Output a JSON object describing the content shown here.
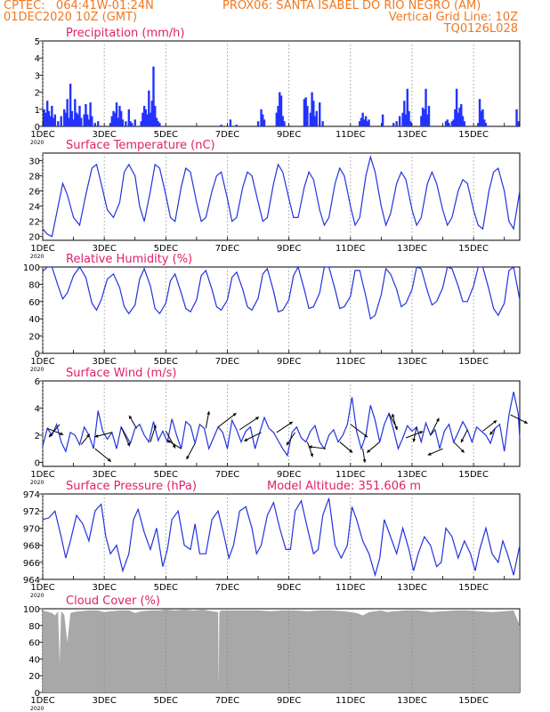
{
  "header": {
    "line1_left": "CPTEC:   064:41W-01:24N",
    "line1_right": "PROX06: SANTA ISABEL DO RIO NEGRO (AM)",
    "line2_left": "01DEC2020 10Z (GMT)",
    "line2_right": "Vertical Grid Line: 10Z",
    "line3_right": "TQ0126L028"
  },
  "colors": {
    "header": "#f07820",
    "title": "#e0206a",
    "series": "#2233dd",
    "bars": "#2233ff",
    "cloud": "#a8a8a8",
    "grid": "#888888"
  },
  "x_axis": {
    "range_days": [
      1.0,
      16.5
    ],
    "ticks": [
      {
        "day": 1,
        "label": "1DEC"
      },
      {
        "day": 3,
        "label": "3DEC"
      },
      {
        "day": 5,
        "label": "5DEC"
      },
      {
        "day": 7,
        "label": "7DEC"
      },
      {
        "day": 9,
        "label": "9DEC"
      },
      {
        "day": 11,
        "label": "11DEC"
      },
      {
        "day": 13,
        "label": "13DEC"
      },
      {
        "day": 15,
        "label": "15DEC"
      }
    ],
    "year_label": "2020"
  },
  "chart_data": [
    {
      "id": "precip",
      "type": "bar",
      "title": "Precipitation (mm/h)",
      "ylim": [
        0,
        5
      ],
      "yticks": [
        0,
        1,
        2,
        3,
        4,
        5
      ],
      "x_days": [
        1.05,
        1.1,
        1.15,
        1.2,
        1.25,
        1.3,
        1.35,
        1.4,
        1.5,
        1.6,
        1.7,
        1.75,
        1.8,
        1.85,
        1.9,
        1.95,
        2.0,
        2.05,
        2.1,
        2.15,
        2.2,
        2.25,
        2.35,
        2.4,
        2.45,
        2.5,
        2.55,
        2.6,
        2.7,
        2.8,
        3.2,
        3.25,
        3.3,
        3.35,
        3.4,
        3.45,
        3.5,
        3.55,
        3.6,
        3.7,
        3.8,
        3.85,
        3.9,
        4.0,
        4.2,
        4.25,
        4.3,
        4.35,
        4.4,
        4.45,
        4.5,
        4.55,
        4.6,
        4.65,
        4.7,
        4.75,
        4.8,
        6.8,
        7.1,
        7.3,
        8.0,
        8.1,
        8.15,
        8.2,
        8.6,
        8.65,
        8.7,
        8.75,
        8.8,
        8.85,
        9.5,
        9.55,
        9.6,
        9.7,
        9.75,
        9.8,
        9.85,
        9.9,
        10.0,
        10.1,
        11.3,
        11.35,
        11.4,
        11.45,
        11.5,
        11.55,
        11.6,
        12.05,
        12.4,
        12.5,
        12.6,
        12.7,
        12.75,
        12.8,
        12.85,
        12.9,
        12.95,
        13.3,
        13.35,
        13.4,
        13.45,
        13.5,
        13.55,
        14.1,
        14.15,
        14.2,
        14.3,
        14.35,
        14.4,
        14.45,
        14.5,
        14.55,
        14.6,
        14.65,
        14.7,
        15.15,
        15.2,
        15.25,
        15.3,
        15.35,
        15.4,
        16.4,
        16.45
      ],
      "values": [
        1.0,
        0.8,
        1.5,
        0.9,
        0.6,
        1.2,
        0.5,
        0.7,
        0.3,
        0.6,
        1.0,
        0.8,
        1.6,
        0.5,
        2.5,
        0.9,
        0.4,
        1.6,
        0.8,
        0.7,
        1.2,
        0.5,
        0.7,
        1.3,
        0.7,
        0.4,
        1.4,
        0.6,
        0.2,
        0.3,
        0.2,
        0.6,
        0.9,
        0.8,
        1.4,
        0.5,
        1.2,
        0.9,
        0.4,
        0.3,
        1.0,
        0.3,
        0.2,
        0.4,
        0.3,
        0.8,
        1.2,
        1.0,
        0.7,
        2.1,
        0.8,
        1.5,
        3.5,
        1.2,
        0.5,
        0.3,
        0.2,
        0.1,
        0.4,
        0.1,
        0.3,
        1.0,
        0.7,
        0.4,
        0.8,
        1.2,
        2.0,
        1.8,
        0.6,
        0.3,
        1.6,
        1.7,
        1.2,
        0.8,
        2.0,
        1.5,
        0.6,
        0.9,
        1.4,
        0.3,
        0.3,
        0.5,
        0.8,
        0.4,
        0.6,
        0.3,
        0.4,
        0.7,
        0.2,
        0.3,
        0.6,
        0.8,
        1.5,
        0.7,
        2.2,
        0.9,
        0.3,
        0.6,
        1.1,
        1.0,
        2.2,
        0.7,
        1.2,
        0.3,
        0.4,
        0.2,
        0.3,
        0.4,
        1.0,
        2.2,
        0.8,
        1.1,
        1.3,
        0.6,
        0.3,
        0.2,
        1.6,
        0.9,
        1.0,
        0.4,
        0.2,
        1.0,
        0.3
      ]
    },
    {
      "id": "temp",
      "type": "line",
      "title": "Surface Temperature (nC)",
      "ylim": [
        19.5,
        31
      ],
      "yticks": [
        20,
        22,
        24,
        26,
        28,
        30
      ],
      "x_days": [
        1.0,
        1.15,
        1.3,
        1.5,
        1.65,
        1.8,
        2.0,
        2.2,
        2.4,
        2.6,
        2.75,
        2.9,
        3.1,
        3.3,
        3.5,
        3.65,
        3.8,
        4.0,
        4.15,
        4.3,
        4.5,
        4.65,
        4.8,
        5.0,
        5.15,
        5.3,
        5.5,
        5.65,
        5.8,
        6.0,
        6.15,
        6.3,
        6.5,
        6.65,
        6.8,
        7.0,
        7.15,
        7.3,
        7.5,
        7.65,
        7.8,
        8.0,
        8.15,
        8.3,
        8.5,
        8.65,
        8.8,
        9.0,
        9.15,
        9.3,
        9.5,
        9.65,
        9.8,
        10.0,
        10.15,
        10.3,
        10.5,
        10.65,
        10.8,
        11.0,
        11.15,
        11.3,
        11.5,
        11.65,
        11.8,
        12.0,
        12.15,
        12.3,
        12.5,
        12.65,
        12.8,
        13.0,
        13.15,
        13.3,
        13.5,
        13.65,
        13.8,
        14.0,
        14.15,
        14.3,
        14.5,
        14.65,
        14.8,
        15.0,
        15.15,
        15.3,
        15.5,
        15.65,
        15.8,
        16.0,
        16.15,
        16.3,
        16.5
      ],
      "values": [
        21.0,
        20.3,
        20.0,
        24.0,
        27.0,
        25.5,
        22.5,
        21.5,
        25.5,
        29.0,
        29.5,
        27.0,
        23.5,
        22.5,
        24.5,
        28.5,
        29.5,
        28.0,
        24.0,
        22.0,
        26.0,
        29.5,
        29.0,
        25.5,
        22.5,
        22.0,
        26.5,
        29.0,
        28.5,
        24.5,
        22.0,
        22.5,
        26.0,
        28.0,
        28.5,
        25.0,
        22.0,
        22.5,
        26.5,
        28.5,
        28.0,
        24.5,
        22.0,
        22.5,
        27.0,
        29.5,
        28.5,
        25.0,
        22.5,
        22.5,
        26.5,
        28.5,
        27.5,
        23.5,
        21.5,
        22.5,
        27.0,
        29.0,
        28.0,
        24.0,
        21.5,
        22.5,
        28.0,
        30.5,
        28.5,
        24.0,
        21.5,
        23.0,
        27.0,
        28.5,
        27.5,
        23.5,
        21.5,
        22.5,
        27.0,
        28.5,
        27.0,
        23.5,
        21.5,
        22.5,
        26.0,
        27.5,
        27.0,
        23.5,
        21.5,
        21.0,
        26.0,
        28.5,
        29.0,
        26.0,
        22.0,
        21.0,
        26.0
      ]
    },
    {
      "id": "rh",
      "type": "line",
      "title": "Relative Humidity (%)",
      "ylim": [
        0,
        100
      ],
      "yticks": [
        0,
        20,
        40,
        60,
        80,
        100
      ],
      "x_days": [
        1.0,
        1.15,
        1.3,
        1.5,
        1.65,
        1.8,
        2.0,
        2.2,
        2.4,
        2.6,
        2.75,
        2.9,
        3.1,
        3.3,
        3.5,
        3.65,
        3.8,
        4.0,
        4.15,
        4.3,
        4.5,
        4.65,
        4.8,
        5.0,
        5.15,
        5.3,
        5.5,
        5.65,
        5.8,
        6.0,
        6.15,
        6.3,
        6.5,
        6.65,
        6.8,
        7.0,
        7.15,
        7.3,
        7.5,
        7.65,
        7.8,
        8.0,
        8.15,
        8.3,
        8.5,
        8.65,
        8.8,
        9.0,
        9.15,
        9.3,
        9.5,
        9.65,
        9.8,
        10.0,
        10.15,
        10.3,
        10.5,
        10.65,
        10.8,
        11.0,
        11.15,
        11.3,
        11.5,
        11.65,
        11.8,
        12.0,
        12.15,
        12.3,
        12.5,
        12.65,
        12.8,
        13.0,
        13.15,
        13.3,
        13.5,
        13.65,
        13.8,
        14.0,
        14.15,
        14.3,
        14.5,
        14.65,
        14.8,
        15.0,
        15.15,
        15.3,
        15.5,
        15.65,
        15.8,
        16.0,
        16.15,
        16.3,
        16.5
      ],
      "values": [
        95,
        100,
        100,
        78,
        63,
        70,
        90,
        100,
        88,
        58,
        50,
        62,
        86,
        92,
        76,
        54,
        46,
        56,
        86,
        98,
        78,
        52,
        46,
        58,
        84,
        92,
        70,
        52,
        48,
        62,
        90,
        96,
        74,
        54,
        50,
        62,
        88,
        94,
        74,
        54,
        50,
        64,
        92,
        98,
        72,
        48,
        50,
        62,
        90,
        100,
        74,
        52,
        54,
        70,
        100,
        100,
        74,
        52,
        54,
        66,
        96,
        96,
        66,
        40,
        44,
        68,
        98,
        92,
        74,
        54,
        58,
        74,
        100,
        98,
        72,
        56,
        60,
        76,
        100,
        98,
        78,
        60,
        60,
        78,
        100,
        100,
        74,
        52,
        44,
        58,
        96,
        100,
        62
      ]
    },
    {
      "id": "wind",
      "type": "line",
      "title": "Surface Wind (m/s)",
      "ylim": [
        -0.3,
        6
      ],
      "yticks": [
        0,
        2,
        4,
        6
      ],
      "x_days": [
        1.0,
        1.15,
        1.3,
        1.45,
        1.6,
        1.75,
        1.9,
        2.05,
        2.2,
        2.35,
        2.5,
        2.65,
        2.8,
        2.95,
        3.1,
        3.25,
        3.4,
        3.55,
        3.7,
        3.85,
        4.0,
        4.15,
        4.3,
        4.45,
        4.6,
        4.75,
        4.9,
        5.05,
        5.2,
        5.35,
        5.5,
        5.65,
        5.8,
        5.95,
        6.1,
        6.25,
        6.4,
        6.55,
        6.7,
        6.85,
        7.0,
        7.15,
        7.3,
        7.45,
        7.6,
        7.75,
        7.9,
        8.05,
        8.2,
        8.35,
        8.5,
        8.65,
        8.8,
        8.95,
        9.1,
        9.25,
        9.4,
        9.55,
        9.7,
        9.85,
        10.0,
        10.15,
        10.3,
        10.45,
        10.6,
        10.75,
        10.9,
        11.05,
        11.2,
        11.35,
        11.5,
        11.65,
        11.8,
        11.95,
        12.1,
        12.25,
        12.4,
        12.55,
        12.7,
        12.85,
        13.0,
        13.15,
        13.3,
        13.45,
        13.6,
        13.75,
        13.9,
        14.05,
        14.2,
        14.35,
        14.5,
        14.65,
        14.8,
        14.95,
        15.1,
        15.25,
        15.4,
        15.55,
        15.7,
        15.85,
        16.0,
        16.15,
        16.3,
        16.45,
        16.5
      ],
      "values": [
        1.2,
        2.5,
        2.0,
        2.8,
        1.5,
        0.8,
        2.2,
        2.0,
        1.3,
        2.6,
        2.0,
        1.0,
        3.8,
        2.3,
        1.7,
        2.2,
        1.0,
        2.6,
        2.0,
        1.4,
        2.5,
        2.8,
        2.0,
        1.5,
        3.0,
        1.6,
        2.3,
        1.5,
        3.2,
        2.0,
        1.0,
        3.0,
        2.7,
        1.4,
        2.8,
        2.5,
        1.0,
        1.8,
        2.6,
        2.2,
        1.0,
        3.1,
        2.4,
        1.5,
        2.3,
        2.6,
        1.0,
        2.2,
        3.3,
        2.5,
        2.2,
        1.6,
        1.0,
        0.5,
        2.2,
        2.6,
        1.8,
        1.5,
        2.3,
        2.7,
        1.5,
        1.0,
        2.0,
        2.4,
        1.5,
        2.0,
        2.8,
        4.8,
        2.3,
        1.0,
        2.0,
        4.2,
        3.1,
        1.5,
        2.8,
        3.6,
        2.4,
        1.0,
        1.8,
        2.7,
        2.3,
        2.6,
        1.5,
        2.9,
        2.0,
        2.4,
        1.0,
        2.3,
        2.8,
        1.5,
        2.2,
        3.0,
        2.4,
        1.5,
        2.6,
        2.3,
        2.0,
        1.4,
        2.5,
        2.8,
        0.8,
        3.5,
        5.2,
        3.6,
        1.8
      ],
      "arrows_days": [
        1.15,
        1.55,
        2.25,
        2.7,
        3.25,
        3.55,
        4.05,
        4.5,
        5.0,
        5.5,
        5.95,
        6.3,
        6.7,
        7.4,
        8.1,
        8.6,
        9.2,
        9.6,
        10.2,
        10.65,
        11.0,
        11.4,
        11.95,
        12.25,
        12.5,
        12.8,
        13.15,
        13.6,
        14.0,
        14.35,
        14.8,
        15.3,
        15.7,
        16.2
      ],
      "arrows_u": [
        1.5,
        -1.0,
        0.8,
        1.5,
        -1.6,
        0.8,
        -0.7,
        0.5,
        0.9,
        -1.3,
        -0.8,
        0.3,
        1.7,
        1.8,
        -1.6,
        1.5,
        -0.8,
        0.5,
        -1.6,
        1.2,
        1.6,
        0.2,
        -1.2,
        0.8,
        -0.4,
        1.6,
        -0.3,
        0.8,
        -1.4,
        1.0,
        -0.6,
        1.3,
        -0.5,
        1.6
      ],
      "arrows_v": [
        -0.6,
        -1.2,
        1.0,
        -1.2,
        -0.4,
        -1.8,
        1.2,
        1.6,
        -1.6,
        0.8,
        -1.5,
        1.6,
        1.3,
        1.2,
        -0.8,
        1.0,
        -1.2,
        -1.4,
        0.2,
        -1.0,
        -1.2,
        -1.3,
        -1.0,
        -1.5,
        1.5,
        0.6,
        -1.4,
        1.6,
        -0.6,
        -1.0,
        -1.2,
        1.0,
        -0.6,
        -0.8
      ]
    },
    {
      "id": "psfc",
      "type": "line",
      "title": "Surface Pressure (hPa)",
      "title_extra": "Model Altitude: 351.606 m",
      "ylim": [
        964,
        974
      ],
      "yticks": [
        964,
        966,
        968,
        970,
        972,
        974
      ],
      "x_days": [
        1.0,
        1.2,
        1.4,
        1.6,
        1.75,
        1.9,
        2.1,
        2.3,
        2.5,
        2.7,
        2.9,
        3.05,
        3.2,
        3.4,
        3.6,
        3.8,
        3.95,
        4.1,
        4.3,
        4.5,
        4.7,
        4.9,
        5.05,
        5.2,
        5.4,
        5.6,
        5.8,
        5.95,
        6.1,
        6.3,
        6.5,
        6.7,
        6.9,
        7.05,
        7.2,
        7.4,
        7.6,
        7.8,
        7.95,
        8.1,
        8.3,
        8.5,
        8.7,
        8.9,
        9.05,
        9.2,
        9.4,
        9.6,
        9.8,
        9.95,
        10.1,
        10.3,
        10.5,
        10.7,
        10.9,
        11.05,
        11.2,
        11.4,
        11.6,
        11.8,
        11.95,
        12.1,
        12.3,
        12.5,
        12.7,
        12.9,
        13.05,
        13.2,
        13.4,
        13.6,
        13.8,
        13.95,
        14.1,
        14.3,
        14.5,
        14.7,
        14.9,
        15.05,
        15.2,
        15.4,
        15.6,
        15.8,
        15.95,
        16.1,
        16.3,
        16.5
      ],
      "values": [
        971.0,
        971.2,
        972.0,
        969.0,
        966.5,
        968.5,
        971.5,
        970.5,
        968.5,
        972.0,
        972.8,
        969.0,
        967.0,
        968.0,
        965.0,
        967.0,
        971.0,
        972.2,
        969.5,
        967.5,
        970.0,
        965.5,
        967.5,
        971.0,
        972.0,
        968.0,
        967.5,
        970.5,
        967.0,
        967.0,
        971.0,
        972.0,
        969.0,
        966.5,
        968.0,
        972.0,
        972.5,
        970.0,
        967.0,
        968.0,
        971.5,
        973.0,
        970.0,
        967.5,
        967.5,
        972.0,
        973.2,
        970.0,
        967.0,
        967.5,
        971.5,
        973.5,
        968.0,
        966.5,
        968.0,
        972.5,
        971.0,
        968.5,
        967.0,
        964.5,
        966.5,
        971.0,
        969.0,
        967.0,
        970.0,
        967.5,
        965.0,
        967.0,
        969.0,
        968.0,
        965.5,
        966.0,
        970.0,
        969.0,
        966.5,
        968.5,
        967.0,
        965.0,
        967.5,
        970.0,
        967.0,
        966.0,
        968.5,
        967.0,
        964.5,
        968.0
      ]
    },
    {
      "id": "cloud",
      "type": "area",
      "title": "Cloud Cover (%)",
      "ylim": [
        0,
        100
      ],
      "yticks": [
        0,
        20,
        40,
        60,
        80,
        100
      ],
      "x_days": [
        1.0,
        1.1,
        1.2,
        1.3,
        1.4,
        1.5,
        1.55,
        1.6,
        1.7,
        1.8,
        1.9,
        2.0,
        2.2,
        2.5,
        2.8,
        3.0,
        3.2,
        3.5,
        3.8,
        4.0,
        4.2,
        4.5,
        4.8,
        5.0,
        5.3,
        5.6,
        5.9,
        6.2,
        6.5,
        6.7,
        6.72,
        6.74,
        6.8,
        7.0,
        7.3,
        7.6,
        8.0,
        8.4,
        8.8,
        9.2,
        9.6,
        10.0,
        10.4,
        10.8,
        11.0,
        11.2,
        11.4,
        11.6,
        11.8,
        12.0,
        12.2,
        12.4,
        12.8,
        13.2,
        13.6,
        14.0,
        14.4,
        14.8,
        15.2,
        15.6,
        16.0,
        16.3,
        16.5
      ],
      "values": [
        97,
        97,
        96,
        95,
        92,
        97,
        35,
        97,
        93,
        60,
        95,
        96,
        97,
        98,
        98,
        96,
        97,
        98,
        98,
        95,
        97,
        98,
        98,
        99,
        98,
        99,
        98,
        99,
        97,
        96,
        8,
        96,
        98,
        98,
        98,
        98,
        98,
        97,
        98,
        98,
        97,
        98,
        98,
        97,
        96,
        95,
        92,
        96,
        97,
        98,
        96,
        97,
        98,
        98,
        96,
        97,
        98,
        98,
        97,
        96,
        97,
        98,
        80
      ]
    }
  ]
}
